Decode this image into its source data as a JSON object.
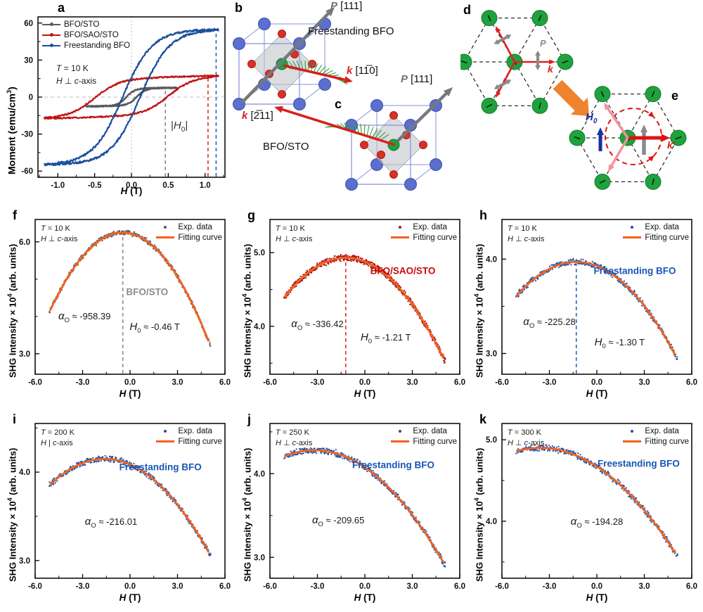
{
  "shg_common": {
    "legend_exp": "Exp. data",
    "legend_fit": "Fitting curve",
    "ylabel_pre": "SHG Intensity × 10",
    "ylabel_sup": "4",
    "ylabel_post": " (arb. units)",
    "xlabel_sym": "H",
    "xlabel_rest": " (T)"
  },
  "diagram": {
    "b": {
      "letter": "b",
      "sample": "Freestanding BFO",
      "p_sym": "P",
      "p_rest": " [111]",
      "k_sym": "k",
      "k_rest": " [11̅0]"
    },
    "c": {
      "letter": "c",
      "sample": "BFO/STO",
      "p_sym": "P",
      "p_rest": " [111]",
      "k_sym": "k",
      "k_rest": " [2̅11]"
    },
    "d": {
      "letter": "d",
      "p_label": "P",
      "k_label": "k"
    },
    "e": {
      "letter": "e",
      "h_sym": "H",
      "h_sub": "0",
      "k_label": "k′"
    },
    "colors": {
      "atom_green": "#1fa23e",
      "atom_green_edge": "#117a2e",
      "atom_blue": "#5b6fce",
      "atom_blue_edge": "#3c4fa8",
      "atom_red": "#da3025",
      "atom_red_edge": "#a81f17",
      "cube_edge": "#8890d8",
      "octahedron": "#c2c6cd",
      "p_arrow": "#75797e",
      "k_arrow": "#d8201a",
      "cycloid": "#2f9e3f",
      "hex_dash": "#2e2e2e",
      "orange_arrow": "#f0832e",
      "h0_blue": "#18309e",
      "pink": "#f2939b",
      "gray_arrow": "#8a8a8a",
      "rot_red": "#e01212"
    }
  },
  "chart_data": [
    {
      "id": "a",
      "letter": "a",
      "type": "scatter",
      "subtype": "magnetic-hysteresis-loops",
      "xlabel_sym": "H",
      "xlabel_rest": " (T)",
      "ylabel_pre": "Moment (emu/cm",
      "ylabel_sup": "3",
      "ylabel_post": ")",
      "cond_t_sym": "T",
      "cond_t_rest": " = 10 K",
      "cond_h_sym": "H",
      "cond_h_mid": " ⊥ ",
      "cond_h_c": "c",
      "cond_h_rest": "-axis",
      "h0_pre": "|",
      "h0_sym": "H",
      "h0_sub": "0",
      "h0_post": "|",
      "xlim": [
        -1.27,
        1.27
      ],
      "ylim": [
        -65,
        65
      ],
      "xticks": [
        "-1.0",
        "-0.5",
        "0.0",
        "0.5",
        "1.0"
      ],
      "yticks": [
        "-60",
        "-30",
        "0",
        "30",
        "60"
      ],
      "x_minor_step": 0.25,
      "y_minor_step": 15,
      "series": [
        {
          "name": "BFO/STO",
          "color": "#5b5b5b",
          "saturation_emu_cm3": 7,
          "coercive_T": 0.07,
          "sharpness_T": 0.12,
          "h_max_T": 0.62,
          "slope": 1.0,
          "noise": 0.5
        },
        {
          "name": "BFO/SAO/STO",
          "color": "#bf1413",
          "saturation_emu_cm3": 15.5,
          "coercive_T": 0.5,
          "sharpness_T": 0.34,
          "h_max_T": 1.18,
          "slope": 1.6,
          "noise": 0.55
        },
        {
          "name": "Freestanding BFO",
          "color": "#1c4f9e",
          "saturation_emu_cm3": 54,
          "coercive_T": 0.12,
          "sharpness_T": 0.4,
          "h_max_T": 1.18,
          "slope": 0.8,
          "noise": 0.8
        }
      ],
      "h0_markers": [
        {
          "H_T": 0.46,
          "color": "#8a8a8a",
          "m_top": 7
        },
        {
          "H_T": 1.04,
          "color": "#e02a25",
          "m_top": 15.5
        },
        {
          "H_T": 1.15,
          "color": "#2b62c4",
          "m_top": 54
        }
      ]
    },
    {
      "id": "f",
      "letter": "f",
      "type": "scatter",
      "subtype": "shg-vs-field",
      "sample": "BFO/STO",
      "sample_color": "#8c8c8c",
      "point_color": "#5a5a5a",
      "fit_color": "#f4611d",
      "cond_t_sym": "T",
      "cond_t_rest": " = 10 K",
      "cond_h_sym": "H",
      "cond_h_mid": " ⊥ ",
      "cond_h_c": "c",
      "cond_h_rest": "-axis",
      "alpha_sym": "α",
      "alpha_sub": "O",
      "alpha_rest": " ≈ -958.39",
      "alpha_O": -958.39,
      "h0_sym": "H",
      "h0_sub": "0",
      "h0_rest": " ≈ -0.46 T",
      "H0_T": -0.46,
      "xlim": [
        -6,
        6
      ],
      "ylim": [
        2.45,
        6.6
      ],
      "xticks": [
        "-6.0",
        "-3.0",
        "0.0",
        "3.0",
        "6.0"
      ],
      "yticks": [
        "3.0",
        "6.0"
      ],
      "ytick_vals": [
        3.0,
        6.0
      ],
      "y_minor_step": 1.0,
      "fit": {
        "peak_x": -0.46,
        "peak_y": 6.25,
        "curvature": 0.099
      },
      "n_points": 430,
      "noise": 0.075,
      "vline_color": "#8a8a8a",
      "pos": {
        "sample": [
          0.59,
          0.47
        ],
        "alpha": [
          0.26,
          0.63
        ],
        "h0": [
          0.63,
          0.7
        ]
      }
    },
    {
      "id": "g",
      "letter": "g",
      "type": "scatter",
      "subtype": "shg-vs-field",
      "sample": "BFO/SAO/STO",
      "sample_color": "#c80b0b",
      "point_color": "#a81210",
      "fit_color": "#f4611d",
      "cond_t_sym": "T",
      "cond_t_rest": " = 10 K",
      "cond_h_sym": "H",
      "cond_h_mid": " ⊥ ",
      "cond_h_c": "c",
      "cond_h_rest": "-axis",
      "alpha_sym": "α",
      "alpha_sub": "O",
      "alpha_rest": " ≈ -336.42",
      "alpha_O": -336.42,
      "h0_sym": "H",
      "h0_sub": "0",
      "h0_rest": " ≈ -1.21 T",
      "H0_T": -1.21,
      "xlim": [
        -6,
        6
      ],
      "ylim": [
        3.35,
        5.45
      ],
      "xticks": [
        "-6.0",
        "-3.0",
        "0.0",
        "3.0",
        "6.0"
      ],
      "yticks": [
        "4.0",
        "5.0"
      ],
      "ytick_vals": [
        4.0,
        5.0
      ],
      "y_minor_step": 0.5,
      "fit": {
        "peak_x": -1.21,
        "peak_y": 4.93,
        "curvature": 0.0357
      },
      "n_points": 660,
      "noise": 0.05,
      "vline_color": "#e02a25",
      "pos": {
        "sample": [
          0.7,
          0.33
        ],
        "alpha": [
          0.25,
          0.68
        ],
        "h0": [
          0.61,
          0.77
        ]
      }
    },
    {
      "id": "h",
      "letter": "h",
      "type": "scatter",
      "subtype": "shg-vs-field",
      "sample": "Freestanding BFO",
      "sample_color": "#1857b5",
      "point_color": "#1c4f9e",
      "fit_color": "#f4611d",
      "cond_t_sym": "T",
      "cond_t_rest": " = 10 K",
      "cond_h_sym": "H",
      "cond_h_mid": " ⊥ ",
      "cond_h_c": "c",
      "cond_h_rest": "-axis",
      "alpha_sym": "α",
      "alpha_sub": "O",
      "alpha_rest": " ≈ -225.28",
      "alpha_O": -225.28,
      "h0_sym": "H",
      "h0_sub": "0",
      "h0_rest": " ≈ -1.30 T",
      "H0_T": -1.3,
      "xlim": [
        -6,
        6
      ],
      "ylim": [
        2.78,
        4.42
      ],
      "xticks": [
        "-6.0",
        "-3.0",
        "0.0",
        "3.0",
        "6.0"
      ],
      "yticks": [
        "3.0",
        "4.0"
      ],
      "ytick_vals": [
        3.0,
        4.0
      ],
      "y_minor_step": 0.5,
      "fit": {
        "peak_x": -1.3,
        "peak_y": 3.97,
        "curvature": 0.0252
      },
      "n_points": 400,
      "noise": 0.038,
      "vline_color": "#2b62c4",
      "pos": {
        "sample": [
          0.7,
          0.33
        ],
        "alpha": [
          0.25,
          0.67
        ],
        "h0": [
          0.62,
          0.8
        ]
      }
    },
    {
      "id": "i",
      "letter": "i",
      "type": "scatter",
      "subtype": "shg-vs-field",
      "sample": "Freestanding BFO",
      "sample_color": "#1857b5",
      "point_color": "#1c4f9e",
      "fit_color": "#f4611d",
      "cond_t_sym": "T",
      "cond_t_rest": " = 200 K",
      "cond_h_sym": "H",
      "cond_h_mid": " | ",
      "cond_h_c": "c",
      "cond_h_rest": "-axis",
      "alpha_sym": "α",
      "alpha_sub": "O",
      "alpha_rest": " ≈ -216.01",
      "alpha_O": -216.01,
      "xlim": [
        -6,
        6
      ],
      "ylim": [
        2.8,
        4.55
      ],
      "xticks": [
        "-6.0",
        "-3.0",
        "0.0",
        "3.0",
        "6.0"
      ],
      "yticks": [
        "3.0",
        "4.0"
      ],
      "ytick_vals": [
        3.0,
        4.0
      ],
      "y_minor_step": 0.5,
      "fit": {
        "peak_x": -1.6,
        "peak_y": 4.15,
        "curvature": 0.0245
      },
      "n_points": 400,
      "noise": 0.04,
      "pos": {
        "sample": [
          0.66,
          0.28
        ],
        "alpha": [
          0.4,
          0.64
        ]
      }
    },
    {
      "id": "j",
      "letter": "j",
      "type": "scatter",
      "subtype": "shg-vs-field",
      "sample": "Freestanding BFO",
      "sample_color": "#1857b5",
      "point_color": "#1c4f9e",
      "fit_color": "#f4611d",
      "cond_t_sym": "T",
      "cond_t_rest": " = 250 K",
      "cond_h_sym": "H",
      "cond_h_mid": " ⊥ ",
      "cond_h_c": "c",
      "cond_h_rest": "-axis",
      "alpha_sym": "α",
      "alpha_sub": "O",
      "alpha_rest": " ≈ -209.65",
      "alpha_O": -209.65,
      "xlim": [
        -6,
        6
      ],
      "ylim": [
        2.75,
        4.6
      ],
      "xticks": [
        "-6.0",
        "-3.0",
        "0.0",
        "3.0",
        "6.0"
      ],
      "yticks": [
        "3.0",
        "4.0"
      ],
      "ytick_vals": [
        3.0,
        4.0
      ],
      "y_minor_step": 0.5,
      "fit": {
        "peak_x": -3.2,
        "peak_y": 4.28,
        "curvature": 0.0201
      },
      "n_points": 400,
      "noise": 0.045,
      "pos": {
        "sample": [
          0.65,
          0.27
        ],
        "alpha": [
          0.36,
          0.63
        ]
      }
    },
    {
      "id": "k",
      "letter": "k",
      "type": "scatter",
      "subtype": "shg-vs-field",
      "sample": "Freestanding BFO",
      "sample_color": "#1857b5",
      "point_color": "#1c4f9e",
      "fit_color": "#f4611d",
      "cond_t_sym": "T",
      "cond_t_rest": " = 300 K",
      "cond_h_sym": "H",
      "cond_h_mid": " ⊥ ",
      "cond_h_c": "c",
      "cond_h_rest": "-axis",
      "alpha_sym": "α",
      "alpha_sub": "O",
      "alpha_rest": " ≈ -194.28",
      "alpha_O": -194.28,
      "xlim": [
        -6,
        6
      ],
      "ylim": [
        3.3,
        5.2
      ],
      "xticks": [
        "-6.0",
        "-3.0",
        "0.0",
        "3.0",
        "6.0"
      ],
      "yticks": [
        "4.0",
        "5.0"
      ],
      "ytick_vals": [
        4.0,
        5.0
      ],
      "y_minor_step": 0.5,
      "fit": {
        "peak_x": -3.6,
        "peak_y": 4.9,
        "curvature": 0.0176
      },
      "n_points": 400,
      "noise": 0.045,
      "pos": {
        "sample": [
          0.72,
          0.26
        ],
        "alpha": [
          0.5,
          0.64
        ]
      }
    }
  ]
}
